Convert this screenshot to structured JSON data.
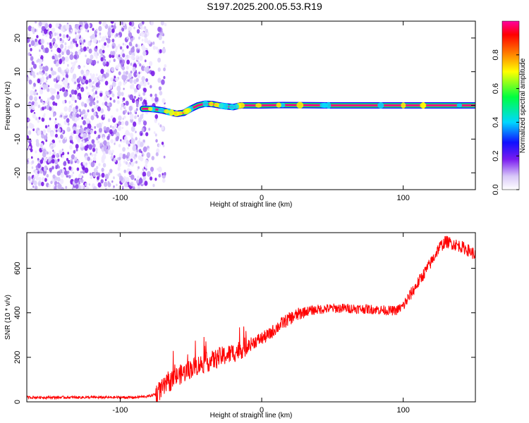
{
  "title": "S197.2025.200.05.53.R19",
  "chart_data": [
    {
      "type": "heatmap",
      "xlabel": "Height of straight line (km)",
      "ylabel": "Frequency (Hz)",
      "xlim": [
        -166,
        151
      ],
      "ylim": [
        -25,
        25
      ],
      "x_ticks": [
        "-100",
        "0",
        "100"
      ],
      "x_tick_values": [
        -100,
        0,
        100
      ],
      "y_ticks": [
        "-20",
        "-10",
        "0",
        "10",
        "20"
      ],
      "y_tick_values": [
        -20,
        -10,
        0,
        10,
        20
      ],
      "colorbar": {
        "label": "Normalized spectral amplitude",
        "ticks": [
          "0.0",
          "0.2",
          "0.4",
          "0.6",
          "0.8"
        ],
        "tick_values": [
          0.0,
          0.2,
          0.4,
          0.6,
          0.8
        ],
        "range": [
          0,
          1
        ]
      },
      "noise_region_x": [
        -166,
        -80
      ],
      "peak_frequency": {
        "x": [
          -84,
          -80,
          -75,
          -70,
          -65,
          -60,
          -55,
          -50,
          -45,
          -40,
          -35,
          -30,
          -25,
          -20,
          -15,
          -10,
          0,
          15,
          50,
          100,
          151
        ],
        "y": [
          -1,
          -1,
          -1.2,
          -1.5,
          -2,
          -2.5,
          -2.2,
          -1,
          0,
          0.5,
          0.4,
          0,
          -0.3,
          -0.5,
          0,
          0,
          0,
          0.1,
          0,
          0,
          0
        ]
      }
    },
    {
      "type": "line",
      "xlabel": "Height of straight line (km)",
      "ylabel": "SNR (10 * v/v)",
      "xlim": [
        -166,
        151
      ],
      "ylim": [
        0,
        760
      ],
      "x_ticks": [
        "-100",
        "0",
        "100"
      ],
      "x_tick_values": [
        -100,
        0,
        100
      ],
      "y_ticks": [
        "0",
        "200",
        "400",
        "600"
      ],
      "y_tick_values": [
        0,
        200,
        400,
        600
      ],
      "line_color": "#ff0000",
      "series": [
        {
          "x": [
            -166,
            -150,
            -120,
            -90,
            -80,
            -75,
            -70,
            -65,
            -60,
            -55,
            -50,
            -45,
            -40,
            -35,
            -30,
            -25,
            -20,
            -15,
            -10,
            -5,
            0,
            5,
            10,
            15,
            20,
            25,
            30,
            40,
            50,
            60,
            70,
            80,
            90,
            95,
            100,
            105,
            110,
            115,
            120,
            125,
            130,
            135,
            140,
            145,
            151
          ],
          "y": [
            20,
            20,
            20,
            20,
            25,
            35,
            60,
            90,
            115,
            130,
            150,
            165,
            175,
            185,
            200,
            210,
            220,
            235,
            250,
            270,
            285,
            300,
            330,
            355,
            375,
            390,
            405,
            415,
            420,
            420,
            418,
            415,
            410,
            410,
            430,
            480,
            530,
            580,
            630,
            690,
            720,
            710,
            700,
            685,
            660
          ]
        }
      ]
    }
  ]
}
